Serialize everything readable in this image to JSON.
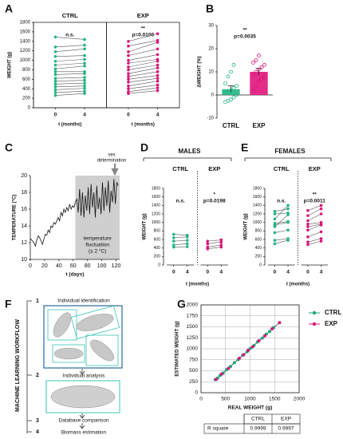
{
  "chart_data": [
    {
      "type": "paired",
      "panel": "A",
      "ylabel": "WEIGHT (g)",
      "xlabel": "t (months)",
      "x": [
        0,
        4
      ],
      "ylim": [
        0,
        1800
      ],
      "yticks": [
        0,
        200,
        400,
        600,
        800,
        1000,
        1200,
        1400,
        1600,
        1800
      ],
      "groups": [
        {
          "name": "CTRL",
          "color": "#22b584",
          "note": "n.s.",
          "values": [
            [
              1490,
              1440
            ],
            [
              1280,
              1320
            ],
            [
              1180,
              1240
            ],
            [
              1080,
              1100
            ],
            [
              980,
              1020
            ],
            [
              900,
              940
            ],
            [
              820,
              880
            ],
            [
              760,
              760
            ],
            [
              700,
              720
            ],
            [
              620,
              640
            ],
            [
              560,
              580
            ],
            [
              500,
              520
            ],
            [
              440,
              460
            ],
            [
              380,
              410
            ],
            [
              320,
              350
            ],
            [
              260,
              300
            ]
          ]
        },
        {
          "name": "EXP",
          "color": "#d9157a",
          "note": "**",
          "p": "p=0.0100",
          "values": [
            [
              1400,
              1560
            ],
            [
              1300,
              1420
            ],
            [
              1180,
              1380
            ],
            [
              1100,
              1240
            ],
            [
              1000,
              1120
            ],
            [
              940,
              1020
            ],
            [
              860,
              980
            ],
            [
              800,
              900
            ],
            [
              720,
              840
            ],
            [
              660,
              760
            ],
            [
              600,
              680
            ],
            [
              540,
              620
            ],
            [
              460,
              560
            ],
            [
              400,
              480
            ],
            [
              340,
              420
            ],
            [
              300,
              360
            ]
          ]
        }
      ]
    },
    {
      "type": "bar",
      "panel": "B",
      "ylabel": "ΔWEIGHT (%)",
      "note": "**",
      "p": "p=0.0035",
      "ylim": [
        -10,
        30
      ],
      "yticks": [
        -10,
        0,
        10,
        20,
        30
      ],
      "series": [
        {
          "name": "CTRL",
          "color": "#22b584",
          "value": 2.5,
          "error": 1.5,
          "points": [
            -3,
            -2.5,
            -2,
            -1,
            0,
            1,
            1.5,
            2,
            3,
            4,
            5,
            8,
            10,
            13
          ]
        },
        {
          "name": "EXP",
          "color": "#e0157a",
          "value": 10,
          "error": 1.5,
          "points": [
            2,
            4,
            6,
            7,
            8,
            9,
            10,
            11,
            12,
            13,
            14,
            15,
            17
          ]
        }
      ]
    },
    {
      "type": "line",
      "panel": "C",
      "ylabel": "TEMPERATURE (°C)",
      "xlabel": "t (days)",
      "xlim": [
        0,
        125
      ],
      "xticks": [
        0,
        20,
        40,
        60,
        80,
        100,
        120
      ],
      "ylim": [
        10,
        20
      ],
      "yticks": [
        10,
        12,
        14,
        16,
        18,
        20
      ],
      "shade": [
        63,
        125
      ],
      "shade_label": [
        "temperature",
        "fluctuation",
        "(± 2 °C)"
      ],
      "marker_label": [
        "sex",
        "determination"
      ],
      "x": [
        0,
        3,
        5,
        7,
        9,
        11,
        13,
        15,
        17,
        19,
        21,
        23,
        25,
        27,
        29,
        31,
        33,
        35,
        37,
        39,
        41,
        43,
        45,
        47,
        49,
        51,
        53,
        55,
        57,
        59,
        61,
        63,
        65,
        67,
        69,
        71,
        73,
        75,
        77,
        79,
        81,
        83,
        85,
        87,
        89,
        91,
        93,
        95,
        97,
        99,
        101,
        103,
        105,
        107,
        109,
        111,
        113,
        115,
        117,
        119,
        121,
        123
      ],
      "values": [
        12.5,
        12.2,
        12.0,
        11.6,
        12.3,
        12.8,
        12.6,
        12.2,
        11.8,
        12.4,
        13.0,
        12.9,
        13.5,
        13.2,
        14.0,
        13.8,
        14.4,
        14.2,
        14.6,
        15.0,
        14.6,
        15.6,
        15.2,
        16.0,
        15.6,
        16.2,
        15.8,
        16.6,
        16.0,
        16.4,
        16.2,
        16.8,
        17.2,
        15.6,
        18.4,
        15.2,
        18.0,
        15.0,
        17.6,
        15.8,
        18.6,
        15.4,
        19.0,
        16.2,
        18.0,
        15.0,
        18.8,
        16.0,
        17.4,
        15.4,
        19.2,
        15.8,
        18.6,
        16.4,
        19.4,
        15.6,
        18.2,
        16.8,
        19.6,
        16.6,
        19.2,
        18.8
      ],
      "color": "#111111"
    },
    {
      "type": "paired",
      "panel": "D",
      "header": "MALES",
      "ylabel": "WEIGHT (g)",
      "xlabel": "t (months)",
      "x": [
        0,
        4
      ],
      "ylim": [
        0,
        1800
      ],
      "yticks": [
        0,
        200,
        400,
        600,
        800,
        1000,
        1200,
        1400,
        1600,
        1800
      ],
      "groups": [
        {
          "name": "CTRL",
          "color": "#22b584",
          "note": "n.s.",
          "values": [
            [
              720,
              700
            ],
            [
              640,
              660
            ],
            [
              560,
              580
            ],
            [
              470,
              500
            ],
            [
              420,
              430
            ]
          ]
        },
        {
          "name": "EXP",
          "color": "#d9157a",
          "note": "*",
          "p": "p=0.0198",
          "values": [
            [
              560,
              590
            ],
            [
              500,
              540
            ],
            [
              420,
              470
            ],
            [
              380,
              420
            ]
          ]
        }
      ]
    },
    {
      "type": "paired",
      "panel": "E",
      "header": "FEMALES",
      "ylabel": "WEIGHT (g)",
      "xlabel": "t (months)",
      "x": [
        0,
        4
      ],
      "ylim": [
        0,
        1800
      ],
      "yticks": [
        0,
        200,
        400,
        600,
        800,
        1000,
        1200,
        1400,
        1600,
        1800
      ],
      "groups": [
        {
          "name": "CTRL",
          "color": "#22b584",
          "note": "n.s.",
          "values": [
            [
              1260,
              1320
            ],
            [
              1200,
              1220
            ],
            [
              1080,
              1400
            ],
            [
              980,
              1020
            ],
            [
              940,
              1000
            ],
            [
              900,
              1180
            ],
            [
              760,
              820
            ],
            [
              580,
              620
            ],
            [
              500,
              580
            ]
          ]
        },
        {
          "name": "EXP",
          "color": "#d9157a",
          "note": "**",
          "p": "p=0.0011",
          "values": [
            [
              1280,
              1400
            ],
            [
              1160,
              1320
            ],
            [
              1040,
              1200
            ],
            [
              960,
              1000
            ],
            [
              900,
              960
            ],
            [
              820,
              940
            ],
            [
              660,
              780
            ],
            [
              540,
              620
            ],
            [
              480,
              560
            ]
          ]
        }
      ]
    },
    {
      "type": "scatter",
      "panel": "G",
      "xlabel": "REAL WEIGHT (g)",
      "ylabel": "ESTIMATED WEIGHT (g)",
      "xlim": [
        0,
        2000
      ],
      "xticks": [
        0,
        500,
        1000,
        1500,
        2000
      ],
      "ylim": [
        0,
        2000
      ],
      "yticks": [
        0,
        250,
        500,
        750,
        1000,
        1250,
        1500,
        1750,
        2000
      ],
      "grid": true,
      "legend": "right",
      "series": [
        {
          "name": "CTRL",
          "color": "#1fa57a",
          "x": [
            290,
            340,
            390,
            450,
            520,
            600,
            680,
            760,
            850,
            940,
            1000,
            1080,
            1150,
            1250,
            1330,
            1400,
            1480
          ],
          "y": [
            300,
            335,
            395,
            445,
            525,
            595,
            685,
            755,
            855,
            935,
            1005,
            1075,
            1155,
            1245,
            1335,
            1395,
            1485
          ]
        },
        {
          "name": "EXP",
          "color": "#d9157a",
          "x": [
            310,
            420,
            560,
            780,
            870,
            960,
            1050,
            1180,
            1300,
            1450,
            1600
          ],
          "y": [
            305,
            425,
            555,
            785,
            865,
            965,
            1045,
            1185,
            1295,
            1455,
            1595
          ]
        }
      ],
      "table": {
        "columns": [
          "CTRL",
          "EXP"
        ],
        "rows": [
          {
            "label": "R square",
            "values": [
              0.9999,
              0.9997
            ]
          }
        ]
      }
    }
  ],
  "workflow": {
    "panel": "F",
    "title": "MACHINE LEARNING WORKFLOW",
    "steps": [
      {
        "number": 1,
        "label": "Individual identification"
      },
      {
        "number": 2,
        "label": "Individual analysis"
      },
      {
        "number": 3,
        "label": "Database comparison"
      },
      {
        "number": 4,
        "label": "Biomass estimation"
      }
    ]
  }
}
